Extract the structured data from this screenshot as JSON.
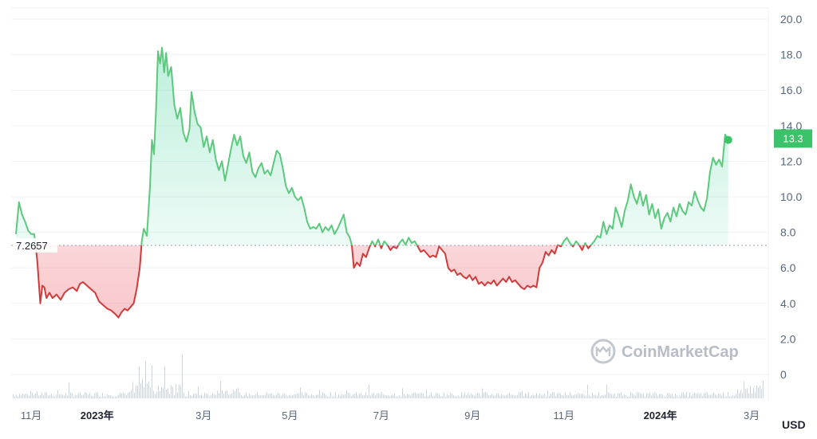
{
  "chart_data": {
    "type": "line",
    "currency_label": "USD",
    "reference_value": 7.2657,
    "reference_label": "7.2657",
    "current_price_label": "13.3",
    "current_price": 13.3,
    "watermark": "CoinMarketCap",
    "colors": {
      "up": "#16c784",
      "down": "#ea3943",
      "line_up": "#5cc97d",
      "line_down": "#d03c3c",
      "badge": "#3cc36a"
    },
    "ylim": [
      0,
      20
    ],
    "yticks": [
      "20.0",
      "18.0",
      "16.0",
      "14.0",
      "12.0",
      "10.0",
      "8.0",
      "6.0",
      "4.0",
      "2.0",
      "0"
    ],
    "xticks": [
      {
        "label": "11月",
        "t": 2.5,
        "bold": false
      },
      {
        "label": "2023年",
        "t": 9,
        "bold": true
      },
      {
        "label": "3月",
        "t": 19.5,
        "bold": false
      },
      {
        "label": "5月",
        "t": 28,
        "bold": false
      },
      {
        "label": "7月",
        "t": 37,
        "bold": false
      },
      {
        "label": "9月",
        "t": 46,
        "bold": false
      },
      {
        "label": "11月",
        "t": 55,
        "bold": false
      },
      {
        "label": "2024年",
        "t": 64.5,
        "bold": true
      },
      {
        "label": "3月",
        "t": 73.5,
        "bold": false
      }
    ],
    "t_range": [
      1,
      74.6
    ],
    "price": [
      [
        1.0,
        7.9
      ],
      [
        1.3,
        9.7
      ],
      [
        1.6,
        9.0
      ],
      [
        1.9,
        8.6
      ],
      [
        2.2,
        8.1
      ],
      [
        2.5,
        7.9
      ],
      [
        2.8,
        7.9
      ],
      [
        3.1,
        6.4
      ],
      [
        3.4,
        4.0
      ],
      [
        3.6,
        5.0
      ],
      [
        3.8,
        4.9
      ],
      [
        4.0,
        4.3
      ],
      [
        4.3,
        4.6
      ],
      [
        4.6,
        4.3
      ],
      [
        5.0,
        4.5
      ],
      [
        5.4,
        4.2
      ],
      [
        5.8,
        4.6
      ],
      [
        6.2,
        4.8
      ],
      [
        6.6,
        4.9
      ],
      [
        7.0,
        4.7
      ],
      [
        7.3,
        5.1
      ],
      [
        7.6,
        5.2
      ],
      [
        8.0,
        5.0
      ],
      [
        8.4,
        4.8
      ],
      [
        8.8,
        4.6
      ],
      [
        9.2,
        4.1
      ],
      [
        9.6,
        3.9
      ],
      [
        10.0,
        3.7
      ],
      [
        10.4,
        3.6
      ],
      [
        10.8,
        3.4
      ],
      [
        11.1,
        3.2
      ],
      [
        11.4,
        3.5
      ],
      [
        11.7,
        3.7
      ],
      [
        12.0,
        3.6
      ],
      [
        12.3,
        3.8
      ],
      [
        12.6,
        4.0
      ],
      [
        12.9,
        4.8
      ],
      [
        13.2,
        6.0
      ],
      [
        13.4,
        7.5
      ],
      [
        13.6,
        8.2
      ],
      [
        13.9,
        7.8
      ],
      [
        14.2,
        10.5
      ],
      [
        14.4,
        13.2
      ],
      [
        14.6,
        12.4
      ],
      [
        14.8,
        14.8
      ],
      [
        15.0,
        18.2
      ],
      [
        15.2,
        17.5
      ],
      [
        15.4,
        18.4
      ],
      [
        15.6,
        17.0
      ],
      [
        15.8,
        18.1
      ],
      [
        16.0,
        16.8
      ],
      [
        16.3,
        17.3
      ],
      [
        16.6,
        15.2
      ],
      [
        16.9,
        14.4
      ],
      [
        17.2,
        15.0
      ],
      [
        17.5,
        13.6
      ],
      [
        17.8,
        13.1
      ],
      [
        18.1,
        13.8
      ],
      [
        18.3,
        15.9
      ],
      [
        18.6,
        14.8
      ],
      [
        18.9,
        14.1
      ],
      [
        19.2,
        13.9
      ],
      [
        19.5,
        12.8
      ],
      [
        19.8,
        13.4
      ],
      [
        20.1,
        12.5
      ],
      [
        20.4,
        13.2
      ],
      [
        20.7,
        12.1
      ],
      [
        21.0,
        11.5
      ],
      [
        21.3,
        12.0
      ],
      [
        21.6,
        10.9
      ],
      [
        21.9,
        11.8
      ],
      [
        22.2,
        12.7
      ],
      [
        22.5,
        13.5
      ],
      [
        22.8,
        12.9
      ],
      [
        23.1,
        13.4
      ],
      [
        23.4,
        12.3
      ],
      [
        23.7,
        11.9
      ],
      [
        24.0,
        12.5
      ],
      [
        24.3,
        11.4
      ],
      [
        24.6,
        11.1
      ],
      [
        24.9,
        11.6
      ],
      [
        25.2,
        11.9
      ],
      [
        25.5,
        11.3
      ],
      [
        25.8,
        11.5
      ],
      [
        26.1,
        11.2
      ],
      [
        26.4,
        11.9
      ],
      [
        26.7,
        12.6
      ],
      [
        27.0,
        12.4
      ],
      [
        27.3,
        11.6
      ],
      [
        27.6,
        10.6
      ],
      [
        27.9,
        10.2
      ],
      [
        28.2,
        10.5
      ],
      [
        28.5,
        10.0
      ],
      [
        28.8,
        9.8
      ],
      [
        29.1,
        10.0
      ],
      [
        29.4,
        9.4
      ],
      [
        29.7,
        8.6
      ],
      [
        30.0,
        8.2
      ],
      [
        30.3,
        8.3
      ],
      [
        30.6,
        8.2
      ],
      [
        30.9,
        8.5
      ],
      [
        31.2,
        8.0
      ],
      [
        31.5,
        8.3
      ],
      [
        31.8,
        8.1
      ],
      [
        32.1,
        8.4
      ],
      [
        32.4,
        7.9
      ],
      [
        32.7,
        8.2
      ],
      [
        33.0,
        8.6
      ],
      [
        33.3,
        9.0
      ],
      [
        33.6,
        8.0
      ],
      [
        33.9,
        7.7
      ],
      [
        34.1,
        7.3
      ],
      [
        34.3,
        6.0
      ],
      [
        34.6,
        6.3
      ],
      [
        34.9,
        6.1
      ],
      [
        35.2,
        6.8
      ],
      [
        35.5,
        6.6
      ],
      [
        35.8,
        7.1
      ],
      [
        36.1,
        7.5
      ],
      [
        36.4,
        7.2
      ],
      [
        36.7,
        7.6
      ],
      [
        37.0,
        7.1
      ],
      [
        37.3,
        7.5
      ],
      [
        37.6,
        7.3
      ],
      [
        37.9,
        7.0
      ],
      [
        38.2,
        7.2
      ],
      [
        38.5,
        7.1
      ],
      [
        38.8,
        7.4
      ],
      [
        39.1,
        7.6
      ],
      [
        39.4,
        7.3
      ],
      [
        39.7,
        7.7
      ],
      [
        40.0,
        7.4
      ],
      [
        40.3,
        7.5
      ],
      [
        40.6,
        7.2
      ],
      [
        40.9,
        6.9
      ],
      [
        41.2,
        7.0
      ],
      [
        41.5,
        6.8
      ],
      [
        41.8,
        6.6
      ],
      [
        42.1,
        6.7
      ],
      [
        42.4,
        6.6
      ],
      [
        42.7,
        7.2
      ],
      [
        43.0,
        7.0
      ],
      [
        43.3,
        6.8
      ],
      [
        43.6,
        6.0
      ],
      [
        43.9,
        5.8
      ],
      [
        44.2,
        5.9
      ],
      [
        44.5,
        5.6
      ],
      [
        44.8,
        5.7
      ],
      [
        45.1,
        5.5
      ],
      [
        45.4,
        5.4
      ],
      [
        45.7,
        5.6
      ],
      [
        46.0,
        5.3
      ],
      [
        46.3,
        5.5
      ],
      [
        46.6,
        5.1
      ],
      [
        46.9,
        5.2
      ],
      [
        47.2,
        5.0
      ],
      [
        47.5,
        5.2
      ],
      [
        47.8,
        5.1
      ],
      [
        48.1,
        5.3
      ],
      [
        48.4,
        5.0
      ],
      [
        48.7,
        5.2
      ],
      [
        49.0,
        5.4
      ],
      [
        49.3,
        5.2
      ],
      [
        49.6,
        5.5
      ],
      [
        49.9,
        5.2
      ],
      [
        50.2,
        5.3
      ],
      [
        50.5,
        5.1
      ],
      [
        50.8,
        4.9
      ],
      [
        51.1,
        4.8
      ],
      [
        51.4,
        5.0
      ],
      [
        51.7,
        4.9
      ],
      [
        52.0,
        5.0
      ],
      [
        52.3,
        4.9
      ],
      [
        52.6,
        6.0
      ],
      [
        52.9,
        6.3
      ],
      [
        53.2,
        6.9
      ],
      [
        53.5,
        6.7
      ],
      [
        53.8,
        7.0
      ],
      [
        54.1,
        6.8
      ],
      [
        54.4,
        7.3
      ],
      [
        54.7,
        7.2
      ],
      [
        55.0,
        7.5
      ],
      [
        55.3,
        7.7
      ],
      [
        55.6,
        7.4
      ],
      [
        55.9,
        7.2
      ],
      [
        56.2,
        7.5
      ],
      [
        56.5,
        7.3
      ],
      [
        56.8,
        7.0
      ],
      [
        57.1,
        7.4
      ],
      [
        57.4,
        7.1
      ],
      [
        57.7,
        7.3
      ],
      [
        58.0,
        7.5
      ],
      [
        58.3,
        7.8
      ],
      [
        58.6,
        7.7
      ],
      [
        58.9,
        8.6
      ],
      [
        59.2,
        7.9
      ],
      [
        59.5,
        8.4
      ],
      [
        59.8,
        8.2
      ],
      [
        60.1,
        9.4
      ],
      [
        60.4,
        8.9
      ],
      [
        60.7,
        8.3
      ],
      [
        61.0,
        9.2
      ],
      [
        61.3,
        9.8
      ],
      [
        61.6,
        10.7
      ],
      [
        61.9,
        10.0
      ],
      [
        62.2,
        9.6
      ],
      [
        62.5,
        10.3
      ],
      [
        62.8,
        9.5
      ],
      [
        63.1,
        10.1
      ],
      [
        63.4,
        9.0
      ],
      [
        63.7,
        9.6
      ],
      [
        64.0,
        8.8
      ],
      [
        64.3,
        9.3
      ],
      [
        64.6,
        8.2
      ],
      [
        64.9,
        8.8
      ],
      [
        65.2,
        9.1
      ],
      [
        65.5,
        8.6
      ],
      [
        65.8,
        9.4
      ],
      [
        66.1,
        8.9
      ],
      [
        66.4,
        9.6
      ],
      [
        66.7,
        9.2
      ],
      [
        67.0,
        9.0
      ],
      [
        67.3,
        9.7
      ],
      [
        67.6,
        9.5
      ],
      [
        67.9,
        10.3
      ],
      [
        68.2,
        9.8
      ],
      [
        68.5,
        9.4
      ],
      [
        68.8,
        9.2
      ],
      [
        69.1,
        9.9
      ],
      [
        69.4,
        11.4
      ],
      [
        69.7,
        12.2
      ],
      [
        70.0,
        11.8
      ],
      [
        70.3,
        12.1
      ],
      [
        70.6,
        11.7
      ],
      [
        70.9,
        13.5
      ],
      [
        71.2,
        13.2
      ]
    ]
  }
}
